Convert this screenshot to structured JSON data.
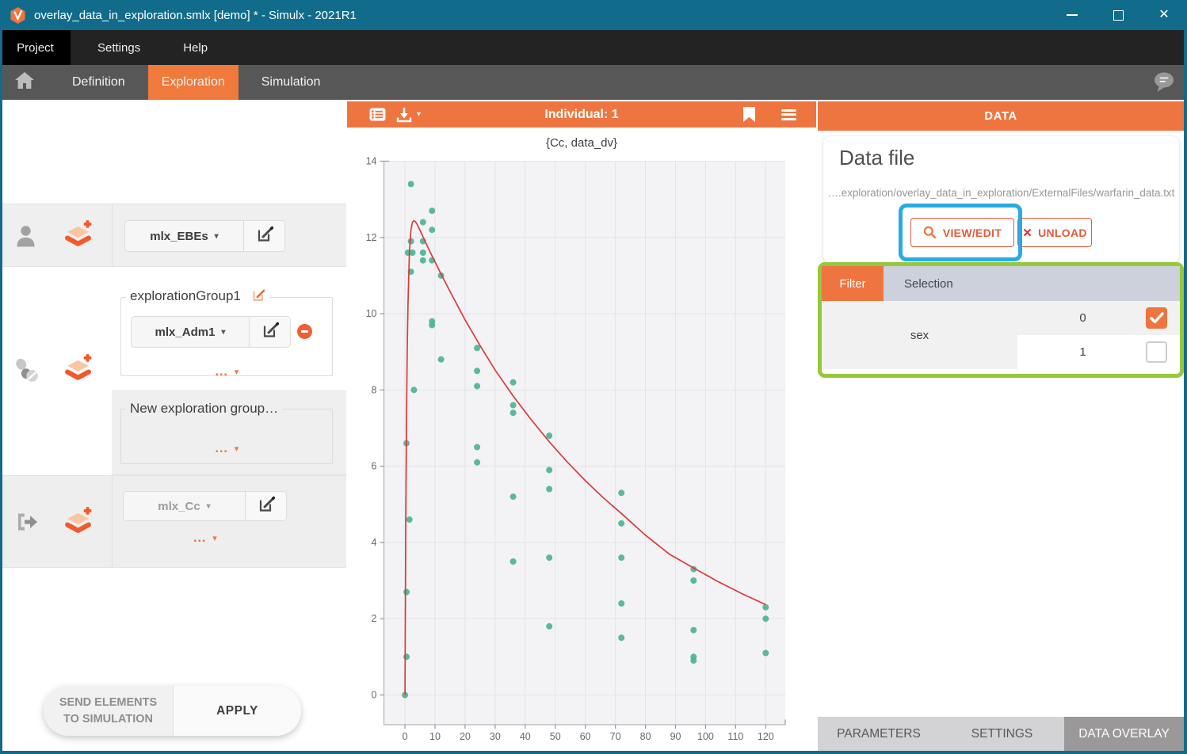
{
  "titlebar": {
    "title": "overlay_data_in_exploration.smlx [demo] * - Simulx - 2021R1",
    "close_glyph": "✕"
  },
  "menubar": {
    "items": [
      {
        "label": "Project"
      },
      {
        "label": "Settings"
      },
      {
        "label": "Help"
      }
    ]
  },
  "navbar": {
    "tabs": [
      {
        "label": "Definition",
        "active": false
      },
      {
        "label": "Exploration",
        "active": true
      },
      {
        "label": "Simulation",
        "active": false
      }
    ]
  },
  "left_panel": {
    "ebes_label": "mlx_EBEs",
    "caret": "▾",
    "more_glyph": "…",
    "group1_legend": "explorationGroup1",
    "adm_label": "mlx_Adm1",
    "new_group_legend": "New exploration group…",
    "cc_label": "mlx_Cc",
    "send_line1": "SEND ELEMENTS",
    "send_line2": "TO SIMULATION",
    "apply_label": "APPLY"
  },
  "chart_header": {
    "title": "Individual: 1"
  },
  "chart_data": {
    "type": "scatter",
    "title": "{Cc, data_dv}",
    "xlabel": "",
    "ylabel": "",
    "xlim": [
      -7,
      126.5
    ],
    "ylim": [
      -0.78,
      14
    ],
    "x_ticks": [
      0,
      10,
      20,
      30,
      40,
      50,
      60,
      70,
      80,
      90,
      100,
      110,
      120
    ],
    "y_ticks": [
      0,
      2,
      4,
      6,
      8,
      10,
      12,
      14
    ],
    "grid": true,
    "legend_position": "none",
    "series": [
      {
        "name": "data_dv",
        "type": "scatter",
        "color": "#49b392",
        "points": [
          [
            0,
            0
          ],
          [
            0.5,
            6.6
          ],
          [
            0.5,
            2.7
          ],
          [
            0.5,
            1.0
          ],
          [
            1,
            11.6
          ],
          [
            1.5,
            4.6
          ],
          [
            2,
            13.4
          ],
          [
            2,
            11.9
          ],
          [
            2.5,
            11.6
          ],
          [
            2,
            11.1
          ],
          [
            3,
            8.0
          ],
          [
            6,
            12.4
          ],
          [
            6,
            11.9
          ],
          [
            6,
            11.6
          ],
          [
            6,
            11.4
          ],
          [
            9,
            12.7
          ],
          [
            9,
            12.2
          ],
          [
            9,
            11.4
          ],
          [
            9,
            9.8
          ],
          [
            9,
            9.7
          ],
          [
            12,
            11.0
          ],
          [
            12,
            8.8
          ],
          [
            24,
            9.1
          ],
          [
            24,
            8.5
          ],
          [
            24,
            8.1
          ],
          [
            24,
            6.5
          ],
          [
            24,
            6.1
          ],
          [
            36,
            8.2
          ],
          [
            36,
            7.6
          ],
          [
            36,
            7.4
          ],
          [
            36,
            5.2
          ],
          [
            36,
            3.5
          ],
          [
            48,
            6.8
          ],
          [
            48,
            5.9
          ],
          [
            48,
            5.4
          ],
          [
            48,
            3.6
          ],
          [
            48,
            1.8
          ],
          [
            72,
            5.3
          ],
          [
            72,
            4.5
          ],
          [
            72,
            3.6
          ],
          [
            72,
            2.4
          ],
          [
            72,
            1.5
          ],
          [
            96,
            3.3
          ],
          [
            96,
            3.0
          ],
          [
            96,
            1.7
          ],
          [
            96,
            1.0
          ],
          [
            96,
            0.9
          ],
          [
            120,
            2.3
          ],
          [
            120,
            2.0
          ],
          [
            120,
            1.1
          ]
        ]
      },
      {
        "name": "Cc",
        "type": "line",
        "color": "#dc3a3a",
        "points": [
          [
            0,
            0
          ],
          [
            0.25,
            4.27
          ],
          [
            0.5,
            7.12
          ],
          [
            0.75,
            9.02
          ],
          [
            1,
            10.27
          ],
          [
            1.5,
            11.63
          ],
          [
            2,
            12.2
          ],
          [
            2.5,
            12.4
          ],
          [
            3,
            12.44
          ],
          [
            3.5,
            12.41
          ],
          [
            4,
            12.35
          ],
          [
            5,
            12.19
          ],
          [
            6,
            12.02
          ],
          [
            8,
            11.68
          ],
          [
            10,
            11.36
          ],
          [
            12,
            11.04
          ],
          [
            15,
            10.58
          ],
          [
            20,
            9.84
          ],
          [
            25,
            9.16
          ],
          [
            30,
            8.52
          ],
          [
            36,
            7.84
          ],
          [
            42,
            7.22
          ],
          [
            48,
            6.64
          ],
          [
            54,
            6.11
          ],
          [
            60,
            5.62
          ],
          [
            66,
            5.17
          ],
          [
            72,
            4.76
          ],
          [
            80,
            4.19
          ],
          [
            88,
            3.69
          ],
          [
            96,
            3.33
          ],
          [
            104,
            2.98
          ],
          [
            112,
            2.66
          ],
          [
            120,
            2.37
          ]
        ]
      }
    ]
  },
  "data_panel": {
    "header": "DATA",
    "card_title": "Data file",
    "file_path": "….exploration/overlay_data_in_exploration/ExternalFiles/warfarin_data.txt",
    "view_edit_label": "VIEW/EDIT",
    "unload_label": "UNLOAD",
    "unload_glyph": "✕",
    "filter_tab": "Filter",
    "selection_tab": "Selection",
    "filter_name": "sex",
    "filter_values": [
      {
        "value": "0",
        "checked": true
      },
      {
        "value": "1",
        "checked": false
      }
    ],
    "bottom_tabs": [
      {
        "label": "PARAMETERS",
        "active": false
      },
      {
        "label": "SETTINGS",
        "active": false
      },
      {
        "label": "DATA OVERLAY",
        "active": true
      }
    ]
  },
  "colors": {
    "accent_orange": "#ee7540",
    "titlebar_teal": "#106c8a",
    "annotation_blue": "#29abe2",
    "annotation_green": "#97c83c",
    "scatter_green": "#49b392",
    "line_red": "#dc3a3a"
  }
}
